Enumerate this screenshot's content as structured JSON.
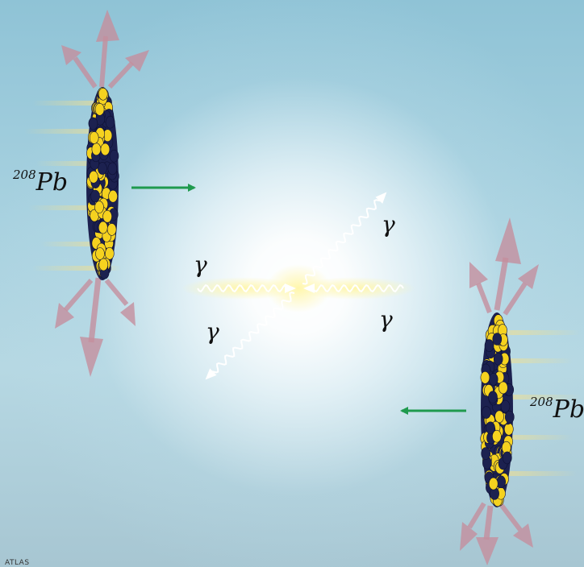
{
  "labels": {
    "nucleus_left": {
      "mass_number": "208",
      "symbol": "Pb"
    },
    "nucleus_right": {
      "mass_number": "208",
      "symbol": "Pb"
    },
    "photon": "γ"
  },
  "credit": "ATLAS",
  "colors": {
    "background": "#a9d2e0",
    "nucleon_yellow": "#f5d21f",
    "nucleon_dark": "#1c2150",
    "motion_arrow": "#1f9a4e",
    "field_arrow": "#c48f9e",
    "photon_glow": "#fff6a8"
  }
}
